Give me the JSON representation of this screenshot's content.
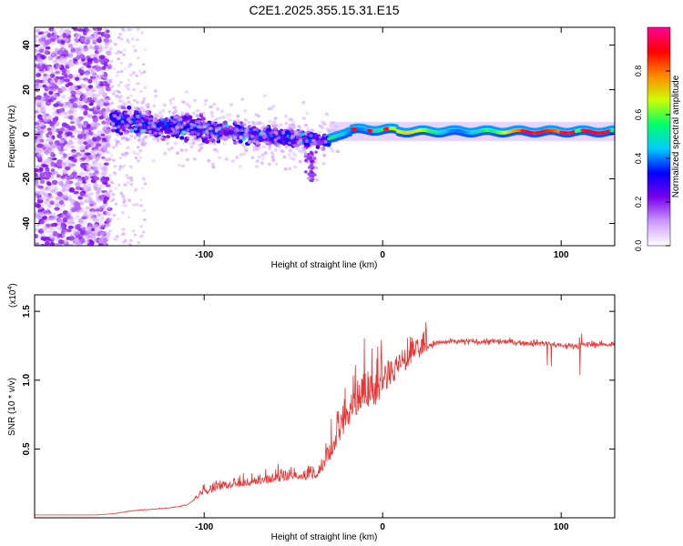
{
  "title": "C2E1.2025.355.15.31.E15",
  "chart_data": [
    {
      "type": "heatmap",
      "xlabel": "Height of straight line (km)",
      "ylabel": "Frequency (Hz)",
      "xlim": [
        -195,
        130
      ],
      "ylim": [
        -50,
        48
      ],
      "xticks": [
        -100,
        0,
        100
      ],
      "yticks": [
        -40,
        -20,
        0,
        20,
        40
      ],
      "colorbar": {
        "label": "Normalized spectral amplitude",
        "range": [
          0,
          1
        ],
        "ticks": [
          0.0,
          0.2,
          0.4,
          0.6,
          0.8
        ],
        "stops": [
          "#ffffff",
          "#cc99ff",
          "#7700ee",
          "#0000ff",
          "#00ccff",
          "#00ff66",
          "#ccff00",
          "#ff8800",
          "#ff0000",
          "#ff0099"
        ]
      }
    },
    {
      "type": "line",
      "xlabel": "Height of straight line (km)",
      "ylabel": "SNR (10 * v/v)",
      "exponent_base": "(x10",
      "exponent_power": "4",
      "exponent_close": ")",
      "xlim": [
        -195,
        130
      ],
      "ylim": [
        0,
        1.62
      ],
      "xticks": [
        -100,
        0,
        100
      ],
      "yticks": [
        0.5,
        1.0,
        1.5
      ],
      "ytick_labels": [
        "0.5",
        "1.0",
        "1.5"
      ],
      "color": "#ee3333",
      "series": [
        {
          "name": "SNR",
          "x": [
            -195,
            -160,
            -150,
            -140,
            -130,
            -120,
            -110,
            -100,
            -90,
            -80,
            -70,
            -60,
            -50,
            -40,
            -35,
            -30,
            -25,
            -20,
            -15,
            -10,
            -5,
            0,
            5,
            10,
            15,
            20,
            25,
            30,
            40,
            50,
            60,
            70,
            80,
            90,
            95,
            100,
            105,
            110,
            115,
            120,
            130
          ],
          "y": [
            0.02,
            0.02,
            0.03,
            0.05,
            0.06,
            0.07,
            0.09,
            0.18,
            0.22,
            0.24,
            0.26,
            0.28,
            0.3,
            0.3,
            0.32,
            0.45,
            0.6,
            0.72,
            0.82,
            0.88,
            0.9,
            0.95,
            1.02,
            1.08,
            1.15,
            1.22,
            1.25,
            1.27,
            1.28,
            1.28,
            1.28,
            1.28,
            1.27,
            1.27,
            1.26,
            1.25,
            1.25,
            1.25,
            1.26,
            1.26,
            1.26
          ]
        }
      ]
    }
  ]
}
